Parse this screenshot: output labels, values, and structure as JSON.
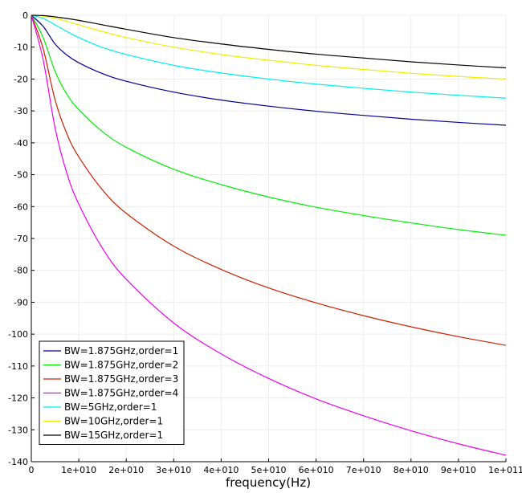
{
  "chart_data": {
    "type": "line",
    "title": "",
    "xlabel": "frequency(Hz)",
    "ylabel": "",
    "xlim": [
      0,
      100000000000
    ],
    "ylim": [
      -140,
      0
    ],
    "grid": true,
    "legend_position": "bottom-left",
    "x_ticks": [
      0,
      10000000000,
      20000000000,
      30000000000,
      40000000000,
      50000000000,
      60000000000,
      70000000000,
      80000000000,
      90000000000,
      100000000000
    ],
    "x_tick_labels": [
      "0",
      "1e+010",
      "2e+010",
      "3e+010",
      "4e+010",
      "5e+010",
      "6e+010",
      "7e+010",
      "8e+010",
      "9e+010",
      "1e+011"
    ],
    "y_ticks": [
      0,
      -10,
      -20,
      -30,
      -40,
      -50,
      -60,
      -70,
      -80,
      -90,
      -100,
      -110,
      -120,
      -130,
      -140
    ],
    "y_tick_labels": [
      "0",
      "-10",
      "-20",
      "-30",
      "-40",
      "-50",
      "-60",
      "-70",
      "-80",
      "-90",
      "-100",
      "-110",
      "-120",
      "-130",
      "-140"
    ],
    "x": [
      0,
      2500000000,
      5000000000,
      7500000000,
      10000000000,
      15000000000,
      20000000000,
      30000000000,
      40000000000,
      50000000000,
      60000000000,
      70000000000,
      80000000000,
      90000000000,
      100000000000
    ],
    "series": [
      {
        "name": "BW=1.875GHz,order=1",
        "color": "#00008b",
        "values": [
          0,
          -3.5,
          -9.0,
          -12.5,
          -14.9,
          -18.3,
          -20.7,
          -24.1,
          -26.6,
          -28.5,
          -30.1,
          -31.4,
          -32.6,
          -33.6,
          -34.5
        ]
      },
      {
        "name": "BW=1.875GHz,order=2",
        "color": "#00ee00",
        "values": [
          0,
          -7.0,
          -17.6,
          -24.8,
          -29.6,
          -36.5,
          -41.4,
          -48.3,
          -53.1,
          -57.0,
          -60.2,
          -62.8,
          -65.1,
          -67.2,
          -69.0
        ]
      },
      {
        "name": "BW=1.875GHz,order=3",
        "color": "#cd2000",
        "values": [
          0,
          -10.5,
          -26.5,
          -37.2,
          -44.4,
          -54.8,
          -62.1,
          -72.4,
          -79.7,
          -85.5,
          -90.2,
          -94.2,
          -97.7,
          -100.8,
          -103.5
        ]
      },
      {
        "name": "BW=1.875GHz,order=4",
        "color": "#ee00ee",
        "values": [
          0,
          -14.0,
          -35.3,
          -49.6,
          -59.2,
          -73.1,
          -82.8,
          -96.5,
          -106.2,
          -113.9,
          -120.3,
          -125.6,
          -130.3,
          -134.4,
          -138.0
        ]
      },
      {
        "name": "BW=5GHz,order=1",
        "color": "#00eeee",
        "values": [
          0,
          -1.0,
          -3.0,
          -5.1,
          -7.0,
          -10.1,
          -12.3,
          -15.7,
          -18.1,
          -20.0,
          -21.6,
          -22.9,
          -24.1,
          -25.1,
          -26.0
        ]
      },
      {
        "name": "BW=10GHz,order=1",
        "color": "#eeee00",
        "values": [
          0,
          -0.3,
          -1.0,
          -1.9,
          -3.0,
          -5.1,
          -7.0,
          -10.0,
          -12.3,
          -14.1,
          -15.7,
          -17.0,
          -18.2,
          -19.2,
          -20.0
        ]
      },
      {
        "name": "BW=15GHz,order=1",
        "color": "#000000",
        "values": [
          0,
          -0.1,
          -0.5,
          -1.0,
          -1.6,
          -3.0,
          -4.4,
          -7.0,
          -9.0,
          -10.7,
          -12.2,
          -13.4,
          -14.6,
          -15.6,
          -16.5
        ]
      }
    ]
  }
}
